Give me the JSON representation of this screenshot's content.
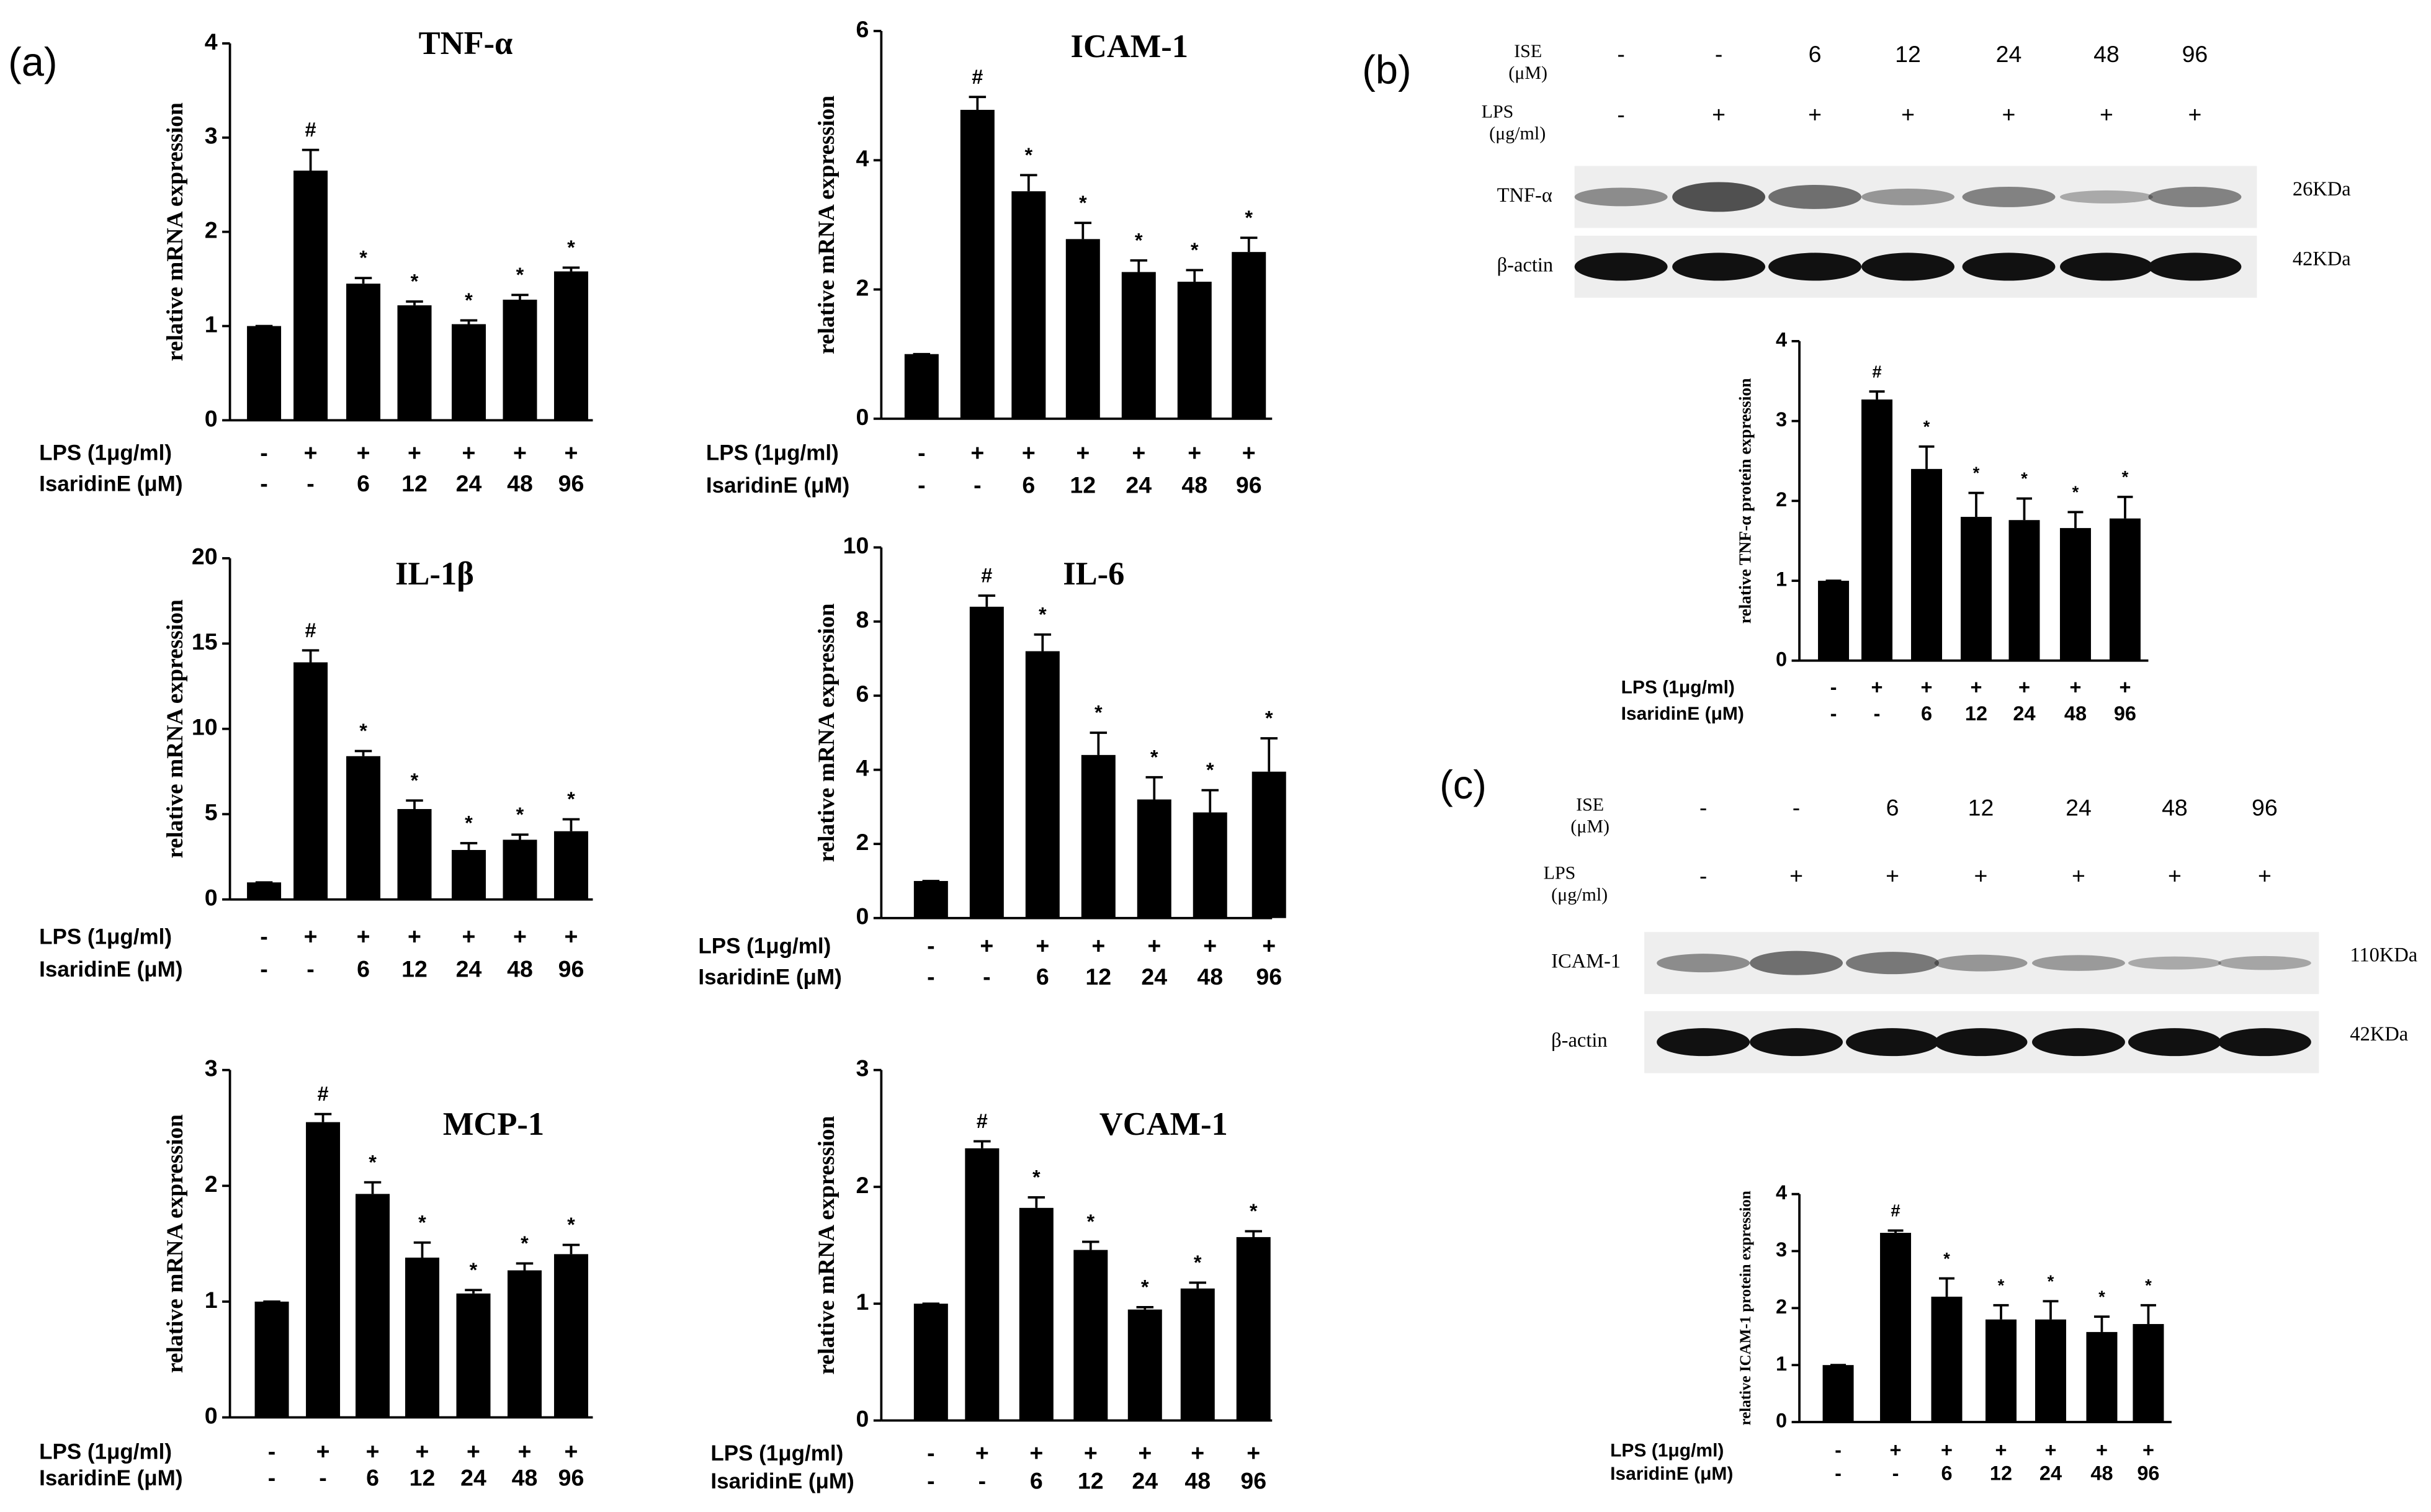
{
  "panel_labels": [
    "(a)",
    "(b)",
    "(c)"
  ],
  "chart_data": [
    {
      "type": "bar",
      "title": "TNF-α",
      "y_label": "relative mRNA expression",
      "row_labels": [
        "LPS  (1μg/ml)",
        "IsaridinE (μM)"
      ],
      "lps": [
        "-",
        "+",
        "+",
        "+",
        "+",
        "+",
        "+"
      ],
      "isaridine": [
        "-",
        "-",
        "6",
        "12",
        "24",
        "48",
        "96"
      ],
      "values": [
        1,
        2.65,
        1.45,
        1.22,
        1.02,
        1.28,
        1.58
      ],
      "errors": [
        0,
        0.22,
        0.06,
        0.04,
        0.04,
        0.05,
        0.04
      ],
      "annotations": [
        null,
        "#",
        "*",
        "*",
        "*",
        "*",
        "*"
      ],
      "color": "#000000",
      "ylim": [
        0,
        4
      ],
      "yticks": [
        0,
        1,
        2,
        3,
        4
      ]
    },
    {
      "type": "bar",
      "title": "ICAM-1",
      "y_label": "relative mRNA expression",
      "row_labels": [
        "LPS  (1μg/ml)",
        "IsaridinE (μM)"
      ],
      "lps": [
        "-",
        "+",
        "+",
        "+",
        "+",
        "+",
        "+"
      ],
      "isaridine": [
        "-",
        "-",
        "6",
        "12",
        "24",
        "48",
        "96"
      ],
      "values": [
        1,
        4.78,
        3.52,
        2.78,
        2.27,
        2.12,
        2.58
      ],
      "errors": [
        0,
        0.2,
        0.25,
        0.25,
        0.18,
        0.18,
        0.22
      ],
      "annotations": [
        null,
        "#",
        "*",
        "*",
        "*",
        "*",
        "*"
      ],
      "color": "#000000",
      "ylim": [
        0,
        6
      ],
      "yticks": [
        0,
        2,
        4,
        6
      ]
    },
    {
      "type": "bar",
      "title": "IL-1β",
      "y_label": "relative mRNA expression",
      "row_labels": [
        "LPS  (1μg/ml)",
        "IsaridinE (μM)"
      ],
      "lps": [
        "-",
        "+",
        "+",
        "+",
        "+",
        "+",
        "+"
      ],
      "isaridine": [
        "-",
        "-",
        "6",
        "12",
        "24",
        "48",
        "96"
      ],
      "values": [
        1,
        13.9,
        8.4,
        5.3,
        2.9,
        3.5,
        4.0
      ],
      "errors": [
        0,
        0.7,
        0.3,
        0.5,
        0.4,
        0.3,
        0.7
      ],
      "annotations": [
        null,
        "#",
        "*",
        "*",
        "*",
        "*",
        "*"
      ],
      "color": "#000000",
      "ylim": [
        0,
        20
      ],
      "yticks": [
        0,
        5,
        10,
        15,
        20
      ]
    },
    {
      "type": "bar",
      "title": "IL-6",
      "y_label": "relative mRNA expression",
      "row_labels": [
        "LPS  (1μg/ml)",
        "IsaridinE (μM)"
      ],
      "lps": [
        "-",
        "+",
        "+",
        "+",
        "+",
        "+",
        "+"
      ],
      "isaridine": [
        "-",
        "-",
        "6",
        "12",
        "24",
        "48",
        "96"
      ],
      "values": [
        1,
        8.4,
        7.2,
        4.4,
        3.2,
        2.85,
        3.95
      ],
      "errors": [
        0,
        0.3,
        0.45,
        0.6,
        0.6,
        0.6,
        0.9
      ],
      "annotations": [
        null,
        "#",
        "*",
        "*",
        "*",
        "*",
        "*"
      ],
      "color": "#000000",
      "ylim": [
        0,
        10
      ],
      "yticks": [
        0,
        2,
        4,
        6,
        8,
        10
      ]
    },
    {
      "type": "bar",
      "title": "MCP-1",
      "y_label": "relative mRNA expression",
      "row_labels": [
        "LPS  (1μg/ml)",
        "IsaridinE (μM)"
      ],
      "lps": [
        "-",
        "+",
        "+",
        "+",
        "+",
        "+",
        "+"
      ],
      "isaridine": [
        "-",
        "-",
        "6",
        "12",
        "24",
        "48",
        "96"
      ],
      "values": [
        1,
        2.55,
        1.93,
        1.38,
        1.07,
        1.27,
        1.41
      ],
      "errors": [
        0,
        0.07,
        0.1,
        0.13,
        0.03,
        0.06,
        0.08
      ],
      "annotations": [
        null,
        "#",
        "*",
        "*",
        "*",
        "*",
        "*"
      ],
      "color": "#000000",
      "ylim": [
        0,
        3
      ],
      "yticks": [
        0,
        1,
        2,
        3
      ]
    },
    {
      "type": "bar",
      "title": "VCAM-1",
      "y_label": "relative mRNA expression",
      "row_labels": [
        "LPS  (1μg/ml)",
        "IsaridinE (μM)"
      ],
      "lps": [
        "-",
        "+",
        "+",
        "+",
        "+",
        "+",
        "+"
      ],
      "isaridine": [
        "-",
        "-",
        "6",
        "12",
        "24",
        "48",
        "96"
      ],
      "values": [
        1,
        2.33,
        1.82,
        1.46,
        0.95,
        1.13,
        1.57
      ],
      "errors": [
        0,
        0.06,
        0.09,
        0.07,
        0.02,
        0.05,
        0.05
      ],
      "annotations": [
        null,
        "#",
        "*",
        "*",
        "*",
        "*",
        "*"
      ],
      "color": "#000000",
      "ylim": [
        0,
        3
      ],
      "yticks": [
        0,
        1,
        2,
        3
      ]
    },
    {
      "type": "bar",
      "y_label": "relative TNF-α protein expression",
      "row_labels": [
        "LPS  (1μg/ml)",
        "IsaridinE (μM)"
      ],
      "lps": [
        "-",
        "+",
        "+",
        "+",
        "+",
        "+",
        "+"
      ],
      "isaridine": [
        "-",
        "-",
        "6",
        "12",
        "24",
        "48",
        "96"
      ],
      "values": [
        1,
        3.27,
        2.4,
        1.8,
        1.76,
        1.66,
        1.78
      ],
      "errors": [
        0,
        0.1,
        0.28,
        0.3,
        0.27,
        0.2,
        0.27
      ],
      "annotations": [
        null,
        "#",
        "*",
        "*",
        "*",
        "*",
        "*"
      ],
      "color": "#000000",
      "ylim": [
        0,
        4
      ],
      "yticks": [
        0,
        1,
        2,
        3,
        4
      ]
    },
    {
      "type": "bar",
      "y_label": "relative ICAM-1 protein expression",
      "row_labels": [
        "LPS  (1μg/ml)",
        "IsaridinE (μM)"
      ],
      "lps": [
        "-",
        "+",
        "+",
        "+",
        "+",
        "+",
        "+"
      ],
      "isaridine": [
        "-",
        "-",
        "6",
        "12",
        "24",
        "48",
        "96"
      ],
      "values": [
        1,
        3.32,
        2.2,
        1.8,
        1.8,
        1.58,
        1.72
      ],
      "errors": [
        0,
        0.04,
        0.32,
        0.25,
        0.32,
        0.27,
        0.33
      ],
      "annotations": [
        null,
        "#",
        "*",
        "*",
        "*",
        "*",
        "*"
      ],
      "color": "#000000",
      "ylim": [
        0,
        4
      ],
      "yticks": [
        0,
        1,
        2,
        3,
        4
      ]
    }
  ],
  "blots": [
    {
      "ise_label": [
        "ISE",
        "(μM)"
      ],
      "ise": [
        "-",
        "-",
        "6",
        "12",
        "24",
        "48",
        "96"
      ],
      "lps_label": [
        "LPS",
        "(μg/ml)"
      ],
      "lps": [
        "-",
        "+",
        "+",
        "+",
        "+",
        "+",
        "+"
      ],
      "bands": [
        {
          "name": "TNF-α",
          "size": "26KDa"
        },
        {
          "name": "β-actin",
          "size": "42KDa"
        }
      ]
    },
    {
      "ise_label": [
        "ISE",
        "(μM)"
      ],
      "ise": [
        "-",
        "-",
        "6",
        "12",
        "24",
        "48",
        "96"
      ],
      "lps_label": [
        "LPS",
        "(μg/ml)"
      ],
      "lps": [
        "-",
        "+",
        "+",
        "+",
        "+",
        "+",
        "+"
      ],
      "bands": [
        {
          "name": "ICAM-1",
          "size": "110KDa"
        },
        {
          "name": "β-actin",
          "size": "42KDa"
        }
      ]
    }
  ]
}
